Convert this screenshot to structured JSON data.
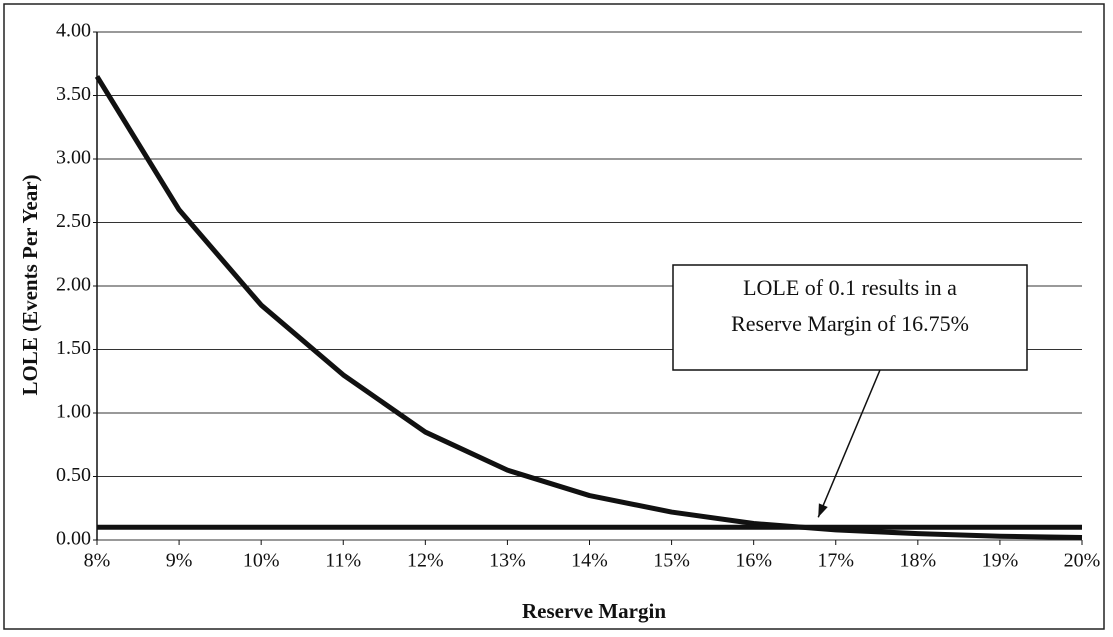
{
  "chart_data": {
    "type": "line",
    "xlabel": "Reserve Margin",
    "ylabel": "LOLE (Events Per Year)",
    "x": [
      8,
      9,
      10,
      11,
      12,
      13,
      14,
      15,
      16,
      17,
      18,
      19,
      20
    ],
    "series": [
      {
        "name": "LOLE",
        "color": "#111111",
        "values": [
          3.65,
          2.6,
          1.85,
          1.3,
          0.85,
          0.55,
          0.35,
          0.22,
          0.13,
          0.08,
          0.05,
          0.03,
          0.02
        ]
      },
      {
        "name": "LOLE of 0.1",
        "color": "#111111",
        "values": [
          0.1,
          0.1,
          0.1,
          0.1,
          0.1,
          0.1,
          0.1,
          0.1,
          0.1,
          0.1,
          0.1,
          0.1,
          0.1
        ]
      }
    ],
    "xlim": [
      8,
      20
    ],
    "xticks": [
      {
        "value": 8,
        "label": "8%"
      },
      {
        "value": 9,
        "label": "9%"
      },
      {
        "value": 10,
        "label": "10%"
      },
      {
        "value": 11,
        "label": "11%"
      },
      {
        "value": 12,
        "label": "12%"
      },
      {
        "value": 13,
        "label": "13%"
      },
      {
        "value": 14,
        "label": "14%"
      },
      {
        "value": 15,
        "label": "15%"
      },
      {
        "value": 16,
        "label": "16%"
      },
      {
        "value": 17,
        "label": "17%"
      },
      {
        "value": 18,
        "label": "18%"
      },
      {
        "value": 19,
        "label": "19%"
      },
      {
        "value": 20,
        "label": "20%"
      }
    ],
    "ylim": [
      0,
      4
    ],
    "yticks": [
      {
        "value": 0,
        "label": "0.00"
      },
      {
        "value": 0.5,
        "label": "0.50"
      },
      {
        "value": 1,
        "label": "1.00"
      },
      {
        "value": 1.5,
        "label": "1.50"
      },
      {
        "value": 2,
        "label": "2.00"
      },
      {
        "value": 2.5,
        "label": "2.50"
      },
      {
        "value": 3,
        "label": "3.00"
      },
      {
        "value": 3.5,
        "label": "3.50"
      },
      {
        "value": 4,
        "label": "4.00"
      }
    ],
    "grid": true,
    "annotation": {
      "lines": [
        "LOLE of 0.1 results in a",
        "Reserve Margin of 16.75%"
      ],
      "x": 16.75,
      "y": 0.1
    }
  }
}
